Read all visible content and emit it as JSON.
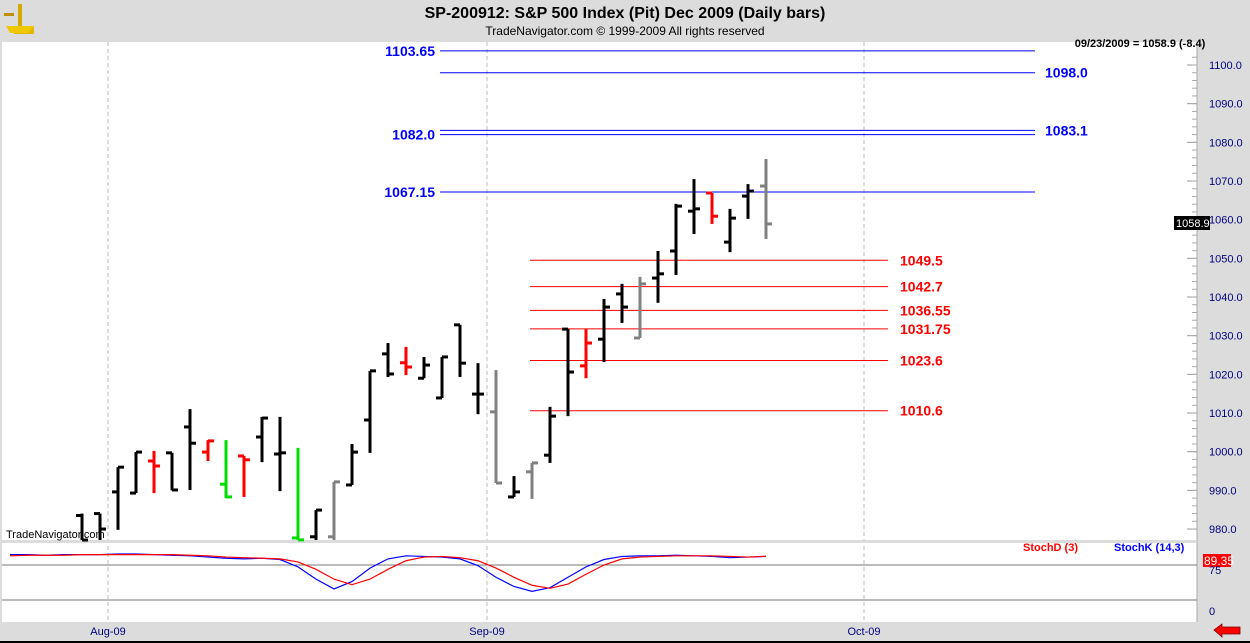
{
  "header": {
    "title": "SP-200912:  S&P 500 Index (Pit) Dec 2009  (Daily bars)",
    "copyright": "TradeNavigator.com © 1999-2009 All rights reserved",
    "logo_icon": "sextant-icon"
  },
  "readout": "09/23/2009 = 1058.9 (-8.4)",
  "watermark": "TradeNavigator.com",
  "last_price_label": "1058.9",
  "colors": {
    "up": "#000000",
    "down": "#ff0000",
    "green": "#00dd00",
    "gray": "#808080",
    "blue_line": "#0000ff",
    "red_line": "#ff0000",
    "stoch_d": "#ff0000",
    "stoch_k": "#0000ff"
  },
  "price_axis": {
    "min": 977,
    "max": 1104,
    "ticks": [
      "1100.0",
      "1090.0",
      "1080.0",
      "1070.0",
      "1060.0",
      "1050.0",
      "1040.0",
      "1030.0",
      "1020.0",
      "1010.0",
      "1000.0",
      "990.0",
      "980.0"
    ]
  },
  "date_axis": [
    "Aug-09",
    "Sep-09",
    "Oct-09"
  ],
  "levels_blue": [
    {
      "value": 1103.65,
      "label": "1103.65",
      "side": "left"
    },
    {
      "value": 1098.0,
      "label": "1098.0",
      "side": "right"
    },
    {
      "value": 1083.1,
      "label": "1083.1",
      "side": "right"
    },
    {
      "value": 1082.0,
      "label": "1082.0",
      "side": "left"
    },
    {
      "value": 1067.15,
      "label": "1067.15",
      "side": "left"
    }
  ],
  "levels_red": [
    {
      "value": 1049.5,
      "label": "1049.5"
    },
    {
      "value": 1042.7,
      "label": "1042.7"
    },
    {
      "value": 1036.55,
      "label": "1036.55"
    },
    {
      "value": 1031.75,
      "label": "1031.75"
    },
    {
      "value": 1023.6,
      "label": "1023.6"
    },
    {
      "value": 1010.6,
      "label": "1010.6"
    }
  ],
  "chart_data": {
    "type": "ohlc",
    "title": "SP-200912:  S&P 500 Index (Pit) Dec 2009  (Daily bars)",
    "bars": [
      {
        "o": 983.5,
        "h": 984,
        "l": 976,
        "c": 977,
        "k": "up"
      },
      {
        "o": 984,
        "h": 984,
        "l": 976,
        "c": 980,
        "k": "up"
      },
      {
        "o": 989.6,
        "h": 996,
        "l": 979.8,
        "c": 996,
        "k": "up"
      },
      {
        "o": 989.3,
        "h": 999.9,
        "l": 989.3,
        "c": 999.9,
        "k": "up"
      },
      {
        "o": 997.6,
        "h": 1000.2,
        "l": 989.3,
        "c": 996.3,
        "k": "down"
      },
      {
        "o": 999.7,
        "h": 999.7,
        "l": 990,
        "c": 990.1,
        "k": "up"
      },
      {
        "o": 1006.4,
        "h": 1011,
        "l": 990.1,
        "c": 1002.2,
        "k": "up"
      },
      {
        "o": 999.9,
        "h": 1003,
        "l": 997.6,
        "c": 1002.8,
        "k": "down"
      },
      {
        "o": 991.6,
        "h": 1003,
        "l": 988,
        "c": 988.3,
        "k": "green"
      },
      {
        "o": 998.9,
        "h": 998.9,
        "l": 988.3,
        "c": 997.9,
        "k": "down"
      },
      {
        "o": 1003.8,
        "h": 1009,
        "l": 997.3,
        "c": 1008.7,
        "k": "up"
      },
      {
        "o": 999.4,
        "h": 1009,
        "l": 989.8,
        "c": 999.7,
        "k": "up"
      },
      {
        "o": 977.7,
        "h": 1001,
        "l": 977,
        "c": 977.2,
        "k": "green"
      },
      {
        "o": 978,
        "h": 984.9,
        "l": 977,
        "c": 984.9,
        "k": "up"
      },
      {
        "o": 978,
        "h": 992.2,
        "l": 977,
        "c": 992.2,
        "k": "gray"
      },
      {
        "o": 991.4,
        "h": 1002,
        "l": 991.4,
        "c": 999.9,
        "k": "up"
      },
      {
        "o": 1008.2,
        "h": 1020.9,
        "l": 999.7,
        "c": 1020.9,
        "k": "up"
      },
      {
        "o": 1025.3,
        "h": 1028.1,
        "l": 1019.3,
        "c": 1020.1,
        "k": "up"
      },
      {
        "o": 1023,
        "h": 1027.1,
        "l": 1019.8,
        "c": 1021.9,
        "k": "down"
      },
      {
        "o": 1019,
        "h": 1024.5,
        "l": 1019,
        "c": 1022.4,
        "k": "up"
      },
      {
        "o": 1013.9,
        "h": 1024.5,
        "l": 1013.9,
        "c": 1024.5,
        "k": "up"
      },
      {
        "o": 1032.8,
        "h": 1032.8,
        "l": 1019.3,
        "c": 1022.9,
        "k": "up"
      },
      {
        "o": 1014.9,
        "h": 1022.9,
        "l": 1009.7,
        "c": 1014.9,
        "k": "up"
      },
      {
        "o": 1010.3,
        "h": 1021.1,
        "l": 991.9,
        "c": 991.9,
        "k": "gray"
      },
      {
        "o": 988.3,
        "h": 993.7,
        "l": 988.3,
        "c": 989.6,
        "k": "up"
      },
      {
        "o": 994.8,
        "h": 997.1,
        "l": 987.8,
        "c": 997.1,
        "k": "gray"
      },
      {
        "o": 999.1,
        "h": 1011.6,
        "l": 997.1,
        "c": 1009.2,
        "k": "up"
      },
      {
        "o": 1031.7,
        "h": 1031.7,
        "l": 1009.2,
        "c": 1020.6,
        "k": "up"
      },
      {
        "o": 1022.2,
        "h": 1031.7,
        "l": 1019,
        "c": 1028.1,
        "k": "down"
      },
      {
        "o": 1029.1,
        "h": 1039.5,
        "l": 1023.2,
        "c": 1037.4,
        "k": "up"
      },
      {
        "o": 1040.8,
        "h": 1043.4,
        "l": 1033.3,
        "c": 1037.4,
        "k": "up"
      },
      {
        "o": 1029.4,
        "h": 1045.2,
        "l": 1029.4,
        "c": 1043.4,
        "k": "gray"
      },
      {
        "o": 1044.9,
        "h": 1051.9,
        "l": 1038.5,
        "c": 1046,
        "k": "up"
      },
      {
        "o": 1051.9,
        "h": 1064.1,
        "l": 1045.7,
        "c": 1063.5,
        "k": "up"
      },
      {
        "o": 1062.2,
        "h": 1070.5,
        "l": 1056.3,
        "c": 1062.8,
        "k": "up"
      },
      {
        "o": 1066.9,
        "h": 1066.9,
        "l": 1058.9,
        "c": 1060.9,
        "k": "down"
      },
      {
        "o": 1054.2,
        "h": 1062.8,
        "l": 1051.6,
        "c": 1060.4,
        "k": "up"
      },
      {
        "o": 1066.1,
        "h": 1069.2,
        "l": 1060.2,
        "c": 1067.4,
        "k": "up"
      },
      {
        "o": 1068.7,
        "h": 1075.7,
        "l": 1055,
        "c": 1058.9,
        "k": "gray"
      }
    ],
    "stochastic": {
      "d_label": "StochD (3)",
      "k_label": "StochK (14,3)",
      "last_value": "89.35",
      "axis_labels": [
        "75",
        "0"
      ],
      "lead_points": 4,
      "k": [
        92,
        92,
        91,
        92,
        92,
        92,
        93,
        93,
        92,
        91,
        90,
        88,
        86,
        85,
        86,
        84,
        72,
        52,
        36,
        48,
        70,
        85,
        90,
        89,
        88,
        85,
        74,
        55,
        40,
        32,
        38,
        55,
        72,
        84,
        89,
        90,
        90,
        91,
        90,
        89,
        87,
        88,
        89
      ],
      "d": [
        90,
        91,
        91,
        91,
        92,
        92,
        92,
        92,
        92,
        92,
        91,
        90,
        88,
        87,
        86,
        85,
        80,
        68,
        52,
        43,
        52,
        68,
        82,
        88,
        89,
        87,
        82,
        70,
        55,
        42,
        37,
        44,
        60,
        75,
        85,
        88,
        89,
        90,
        90,
        90,
        89,
        88,
        89.35
      ]
    }
  }
}
